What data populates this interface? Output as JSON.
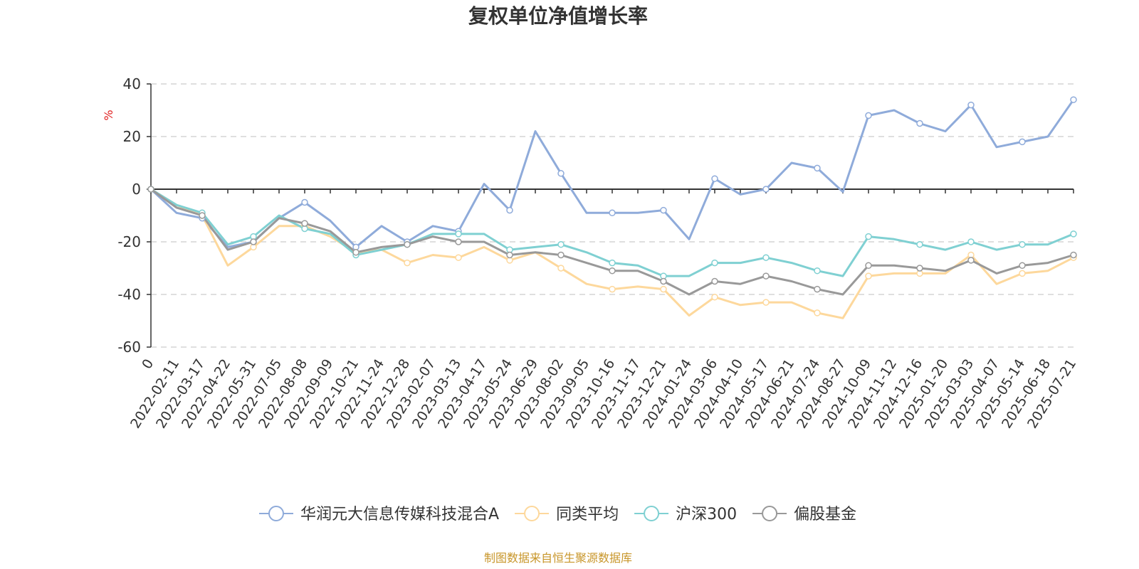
{
  "chart_data": {
    "type": "line",
    "title": "复权单位净值增长率",
    "ylabel": "%",
    "ylim": [
      -60,
      40
    ],
    "yticks": [
      -60,
      -40,
      -20,
      0,
      20,
      40
    ],
    "grid": true,
    "legend_position": "bottom",
    "source_note": "制图数据来自恒生聚源数据库",
    "x": [
      "0",
      "2022-02-11",
      "2022-03-17",
      "2022-04-22",
      "2022-05-31",
      "2022-07-05",
      "2022-08-08",
      "2022-09-09",
      "2022-10-21",
      "2022-11-24",
      "2022-12-28",
      "2023-02-07",
      "2023-03-13",
      "2023-04-17",
      "2023-05-24",
      "2023-06-29",
      "2023-08-02",
      "2023-09-05",
      "2023-10-16",
      "2023-11-17",
      "2023-12-21",
      "2024-01-24",
      "2024-03-06",
      "2024-04-10",
      "2024-05-17",
      "2024-06-21",
      "2024-07-24",
      "2024-08-27",
      "2024-10-09",
      "2024-11-12",
      "2024-12-16",
      "2025-01-20",
      "2025-03-03",
      "2025-04-07",
      "2025-05-14",
      "2025-06-18",
      "2025-07-21"
    ],
    "series": [
      {
        "name": "华润元大信息传媒科技混合A",
        "color": "#8fabda",
        "values": [
          0,
          -9,
          -11,
          -22,
          -20,
          -11,
          -5,
          -12,
          -22,
          -14,
          -20,
          -14,
          -16,
          2,
          -8,
          22,
          6,
          -9,
          -9,
          -9,
          -8,
          -19,
          4,
          -2,
          0,
          10,
          8,
          -1,
          28,
          30,
          25,
          22,
          32,
          16,
          18,
          20,
          34
        ]
      },
      {
        "name": "同类平均",
        "color": "#fdd89c",
        "values": [
          0,
          -6,
          -10,
          -29,
          -22,
          -14,
          -14,
          -18,
          -24,
          -23,
          -28,
          -25,
          -26,
          -22,
          -27,
          -24,
          -30,
          -36,
          -38,
          -37,
          -38,
          -48,
          -41,
          -44,
          -43,
          -43,
          -47,
          -49,
          -33,
          -32,
          -32,
          -32,
          -25,
          -36,
          -32,
          -31,
          -26
        ]
      },
      {
        "name": "沪深300",
        "color": "#7fd0d2",
        "values": [
          0,
          -6,
          -9,
          -21,
          -18,
          -10,
          -15,
          -17,
          -25,
          -23,
          -21,
          -17,
          -17,
          -17,
          -23,
          -22,
          -21,
          -24,
          -28,
          -29,
          -33,
          -33,
          -28,
          -28,
          -26,
          -28,
          -31,
          -33,
          -18,
          -19,
          -21,
          -23,
          -20,
          -23,
          -21,
          -21,
          -17
        ]
      },
      {
        "name": "偏股基金",
        "color": "#999999",
        "values": [
          0,
          -7,
          -10,
          -23,
          -20,
          -11,
          -13,
          -16,
          -24,
          -22,
          -21,
          -18,
          -20,
          -20,
          -25,
          -24,
          -25,
          -28,
          -31,
          -31,
          -35,
          -40,
          -35,
          -36,
          -33,
          -35,
          -38,
          -40,
          -29,
          -29,
          -30,
          -31,
          -27,
          -32,
          -29,
          -28,
          -25
        ]
      }
    ]
  }
}
